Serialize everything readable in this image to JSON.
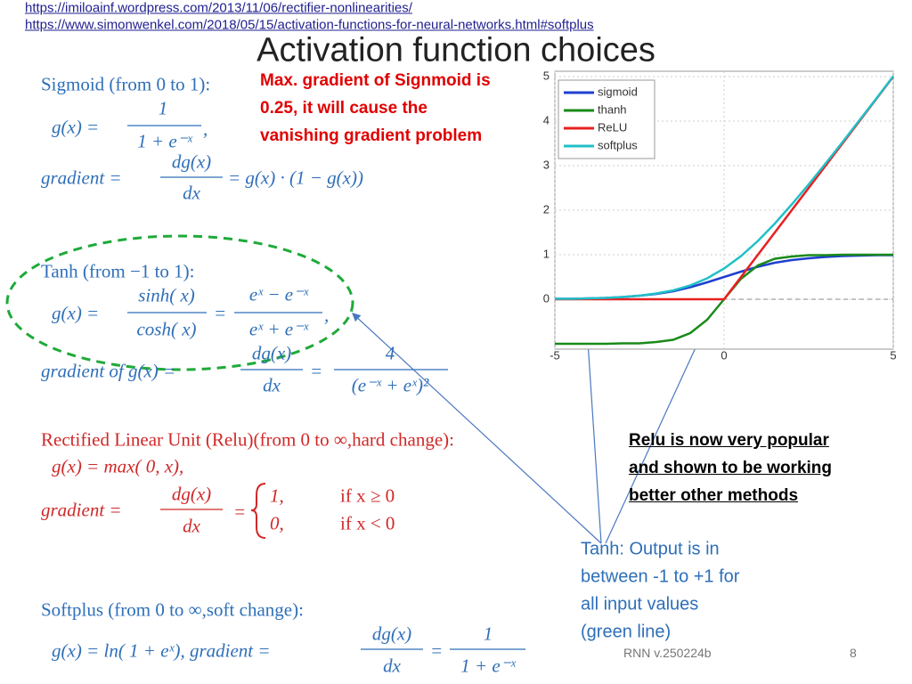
{
  "links": [
    "https://imiloainf.wordpress.com/2013/11/06/rectifier-nonlinearities/",
    "https://www.simonwenkel.com/2018/05/15/activation-functions-for-neural-networks.html#softplus"
  ],
  "title": "Activation function choices",
  "sigmoid": {
    "heading": "Sigmoid (from 0 to 1):",
    "g_lhs": "g(x) =",
    "g_num": "1",
    "g_den": "1 + e⁻ˣ",
    "g_end": ",",
    "grad_lhs": "gradient =",
    "grad_num": "dg(x)",
    "grad_den": "dx",
    "grad_rhs": "= g(x) · (1 − g(x))"
  },
  "tanh": {
    "heading": "Tanh (from −1 to 1):",
    "g_lhs": "g(x) =",
    "f1_num": "sinh( x)",
    "f1_den": "cosh( x)",
    "eq": "=",
    "f2_num": "eˣ − e⁻ˣ",
    "f2_den": "eˣ + e⁻ˣ",
    "g_end": ",",
    "grad_lhs": "gradient of g(x) =",
    "grad_num": "dg(x)",
    "grad_den": "dx",
    "eq2": "=",
    "f3_num": "4",
    "f3_den": "(e⁻ˣ + eˣ)²"
  },
  "relu": {
    "heading": "Rectified Linear Unit (Relu)(from 0 to ∞,hard change):",
    "g": "g(x) = max( 0, x),",
    "grad_lhs": "gradient =",
    "grad_num": "dg(x)",
    "grad_den": "dx",
    "eq": "=",
    "case1": "1,",
    "cond1": "if x ≥ 0",
    "case2": "0,",
    "cond2": "if x < 0"
  },
  "softplus": {
    "heading": "Softplus (from 0 to ∞,soft change):",
    "g": "g(x) = ln( 1 + eˣ), gradient =",
    "grad_num": "dg(x)",
    "grad_den": "dx",
    "eq": "=",
    "f_num": "1",
    "f_den": "1 + e⁻ˣ"
  },
  "annotations": {
    "sigmoid_note": [
      "Max. gradient of Signmoid is",
      "0.25, it will cause the",
      "vanishing gradient  problem"
    ],
    "relu_note": [
      "Relu is now very popular",
      "and shown to be working",
      "better other methods"
    ],
    "tanh_note": [
      "Tanh: Output is in",
      "between -1 to +1 for",
      "all input values",
      "(green line)"
    ]
  },
  "footer": {
    "label": "RNN v.250224b",
    "page": "8"
  },
  "chart_data": {
    "type": "line",
    "x": [
      -5,
      -4.5,
      -4,
      -3.5,
      -3,
      -2.5,
      -2,
      -1.5,
      -1,
      -0.5,
      0,
      0.5,
      1,
      1.5,
      2,
      2.5,
      3,
      3.5,
      4,
      4.5,
      5
    ],
    "series": [
      {
        "name": "sigmoid",
        "color": "#1f3fd0",
        "values": [
          0.01,
          0.01,
          0.02,
          0.03,
          0.05,
          0.08,
          0.12,
          0.18,
          0.27,
          0.38,
          0.5,
          0.62,
          0.73,
          0.82,
          0.88,
          0.92,
          0.95,
          0.97,
          0.98,
          0.99,
          0.99
        ]
      },
      {
        "name": "thanh",
        "color": "#1a8a1a",
        "values": [
          -1,
          -1,
          -1,
          -1,
          -0.99,
          -0.99,
          -0.96,
          -0.91,
          -0.76,
          -0.46,
          0,
          0.46,
          0.76,
          0.91,
          0.96,
          0.99,
          0.99,
          1,
          1,
          1,
          1
        ]
      },
      {
        "name": "ReLU",
        "color": "#e82020",
        "values": [
          0,
          0,
          0,
          0,
          0,
          0,
          0,
          0,
          0,
          0,
          0,
          0.5,
          1,
          1.5,
          2,
          2.5,
          3,
          3.5,
          4,
          4.5,
          5
        ]
      },
      {
        "name": "softplus",
        "color": "#20c0c8",
        "values": [
          0.01,
          0.01,
          0.02,
          0.03,
          0.05,
          0.08,
          0.13,
          0.2,
          0.31,
          0.47,
          0.69,
          0.97,
          1.31,
          1.7,
          2.13,
          2.58,
          3.05,
          3.53,
          4.02,
          4.51,
          5.01
        ]
      }
    ],
    "xlim": [
      -5,
      5
    ],
    "ylim": [
      -1,
      5
    ],
    "xticks": [
      -5,
      0,
      5
    ],
    "yticks": [
      0,
      1,
      2,
      3,
      4,
      5
    ],
    "grid": true,
    "legend": "upper left"
  }
}
